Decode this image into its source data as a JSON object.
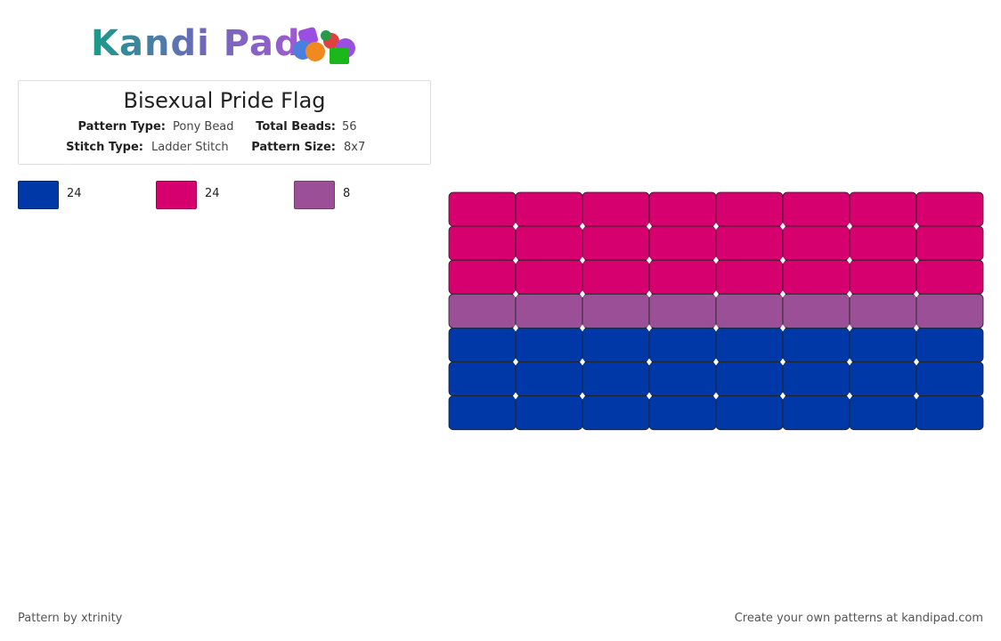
{
  "header": {
    "logo": "Kandi Pad"
  },
  "info": {
    "title": "Bisexual Pride Flag",
    "fields": [
      {
        "label": "Pattern Type:",
        "value": "Pony Bead"
      },
      {
        "label": "Total Beads:",
        "value": 56
      },
      {
        "label": "Stitch Type:",
        "value": "Ladder Stitch"
      },
      {
        "label": "Pattern Size:",
        "value": "8x7"
      }
    ]
  },
  "legend": [
    {
      "color": "#0038a8",
      "count": 24
    },
    {
      "color": "#d6006f",
      "count": 24
    },
    {
      "color": "#9b4f96",
      "count": 8
    }
  ],
  "grid": {
    "rows": [
      [
        "#d6006f",
        "#d6006f",
        "#d6006f",
        "#d6006f",
        "#d6006f",
        "#d6006f",
        "#d6006f",
        "#d6006f"
      ],
      [
        "#d6006f",
        "#d6006f",
        "#d6006f",
        "#d6006f",
        "#d6006f",
        "#d6006f",
        "#d6006f",
        "#d6006f"
      ],
      [
        "#d6006f",
        "#d6006f",
        "#d6006f",
        "#d6006f",
        "#d6006f",
        "#d6006f",
        "#d6006f",
        "#d6006f"
      ],
      [
        "#9b4f96",
        "#9b4f96",
        "#9b4f96",
        "#9b4f96",
        "#9b4f96",
        "#9b4f96",
        "#9b4f96",
        "#9b4f96"
      ],
      [
        "#0038a8",
        "#0038a8",
        "#0038a8",
        "#0038a8",
        "#0038a8",
        "#0038a8",
        "#0038a8",
        "#0038a8"
      ],
      [
        "#0038a8",
        "#0038a8",
        "#0038a8",
        "#0038a8",
        "#0038a8",
        "#0038a8",
        "#0038a8",
        "#0038a8"
      ],
      [
        "#0038a8",
        "#0038a8",
        "#0038a8",
        "#0038a8",
        "#0038a8",
        "#0038a8",
        "#0038a8",
        "#0038a8"
      ]
    ]
  },
  "footer": {
    "left": "Pattern by xtrinity",
    "right": "Create your own patterns at kandipad.com"
  }
}
